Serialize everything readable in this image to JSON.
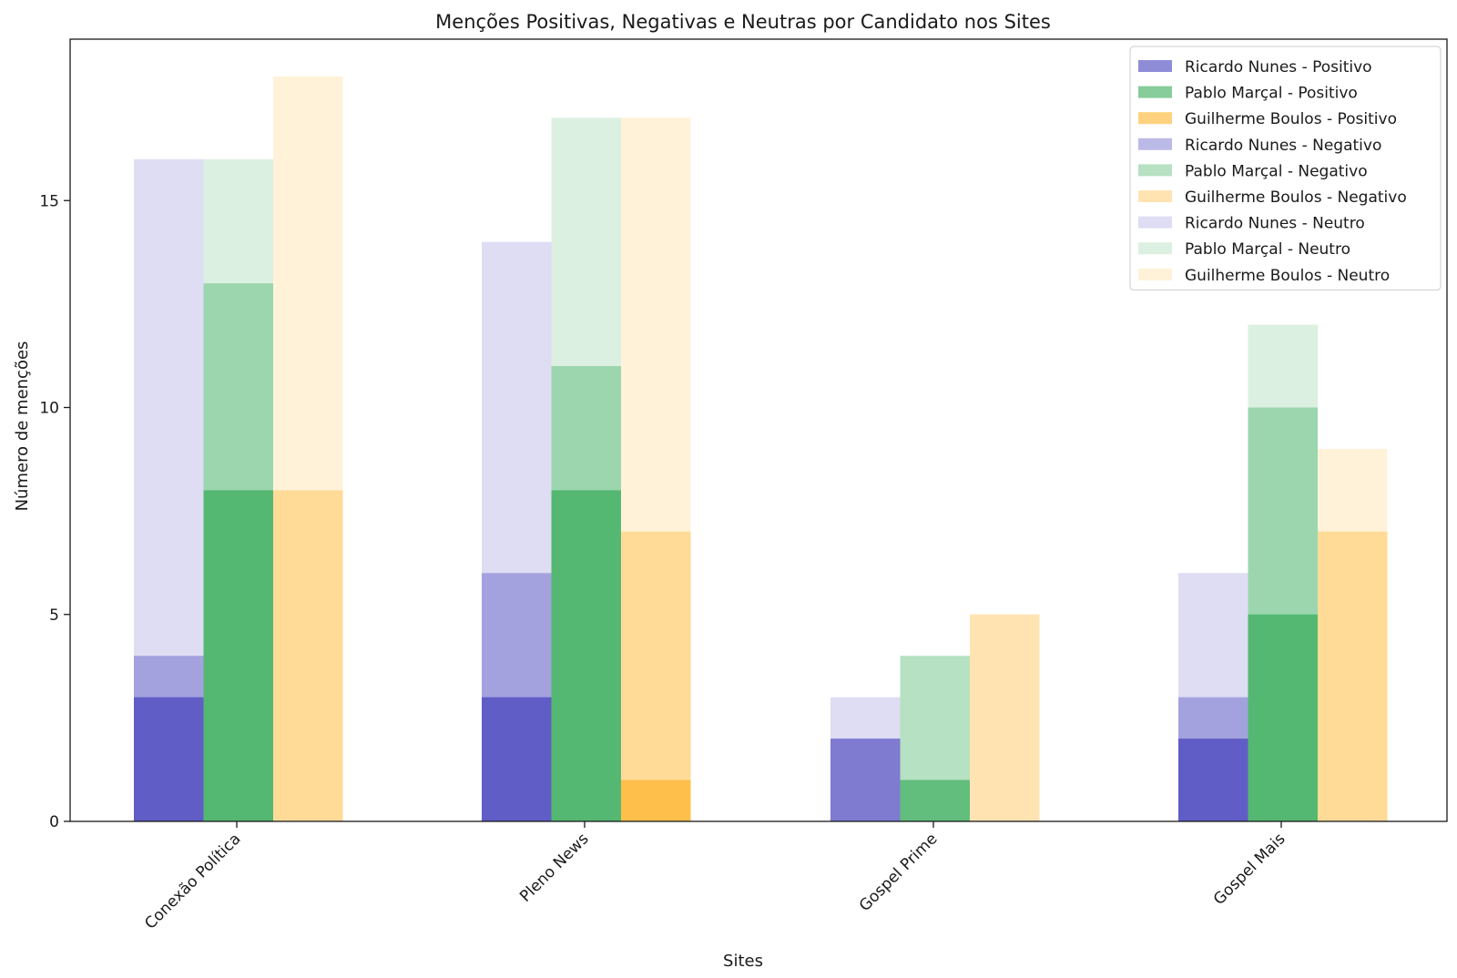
{
  "chart_data": {
    "type": "bar",
    "title": "Menções Positivas, Negativas e Neutras por Candidato nos Sites",
    "xlabel": "Sites",
    "ylabel": "Número de menções",
    "ylim": [
      0,
      18.9
    ],
    "yticks": [
      0,
      5,
      10,
      15
    ],
    "categories": [
      "Conexão Política",
      "Pleno News",
      "Gospel Prime",
      "Gospel Mais"
    ],
    "grid": false,
    "legend_position": "top-right",
    "candidates": [
      {
        "name": "Ricardo Nunes",
        "color": "#1f1ab0",
        "positivo": [
          3,
          3,
          2,
          2
        ],
        "negativo": [
          4,
          6,
          0,
          3
        ],
        "neutro": [
          16,
          14,
          3,
          6
        ]
      },
      {
        "name": "Pablo Marçal",
        "color": "#0d9b38",
        "positivo": [
          8,
          8,
          1,
          5
        ],
        "negativo": [
          13,
          11,
          4,
          10
        ],
        "neutro": [
          16,
          17,
          0,
          12
        ]
      },
      {
        "name": "Guilherme Boulos",
        "color": "#ffa500",
        "positivo": [
          0,
          1,
          0,
          0
        ],
        "negativo": [
          8,
          7,
          5,
          7
        ],
        "neutro": [
          18,
          17,
          0,
          9
        ]
      }
    ],
    "sentiments": [
      {
        "key": "positivo",
        "label": "Positivo",
        "alpha": 0.5
      },
      {
        "key": "negativo",
        "label": "Negativo",
        "alpha": 0.3
      },
      {
        "key": "neutro",
        "label": "Neutro",
        "alpha": 0.15
      }
    ],
    "legend": [
      "Ricardo Nunes - Positivo",
      "Pablo Marçal - Positivo",
      "Guilherme Boulos - Positivo",
      "Ricardo Nunes - Negativo",
      "Pablo Marçal - Negativo",
      "Guilherme Boulos - Negativo",
      "Ricardo Nunes - Neutro",
      "Pablo Marçal - Neutro",
      "Guilherme Boulos - Neutro"
    ]
  }
}
